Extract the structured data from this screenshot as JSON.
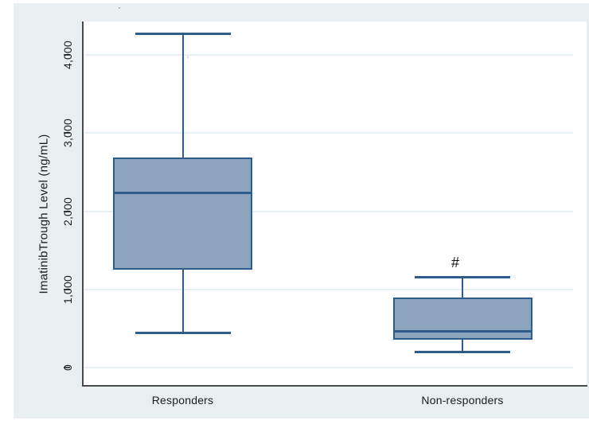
{
  "chart_data": {
    "type": "box",
    "title": "",
    "ylabel": "ImatinibTrough Level (ng/mL)",
    "xlabel": "",
    "categories": [
      "Responders",
      "Non-responders"
    ],
    "yticks": [
      "0",
      "1,000",
      "2,000",
      "3,000",
      "4,000"
    ],
    "ytick_values": [
      0,
      1000,
      2000,
      3000,
      4000
    ],
    "ylim": [
      0,
      4470
    ],
    "grid": true,
    "legend": "none",
    "series": [
      {
        "name": "Responders",
        "whisker_low": 450,
        "q1": 1250,
        "median": 2240,
        "q3": 2690,
        "whisker_high": 4270,
        "annotation": ""
      },
      {
        "name": "Non-responders",
        "whisker_low": 200,
        "q1": 355,
        "median": 470,
        "q3": 900,
        "whisker_high": 1160,
        "annotation": "#"
      }
    ],
    "colors": {
      "box_fill": "#8ca4bd",
      "box_border": "#2f5c8a",
      "median_line": "#2f5c8a",
      "whisker": "#2f5c8a",
      "gridline": "#e7f0f2",
      "axis": "#4b4b4b",
      "figure_background": "#e9eff1",
      "plot_background": "#ffffff",
      "text": "#1c1c1c"
    }
  }
}
